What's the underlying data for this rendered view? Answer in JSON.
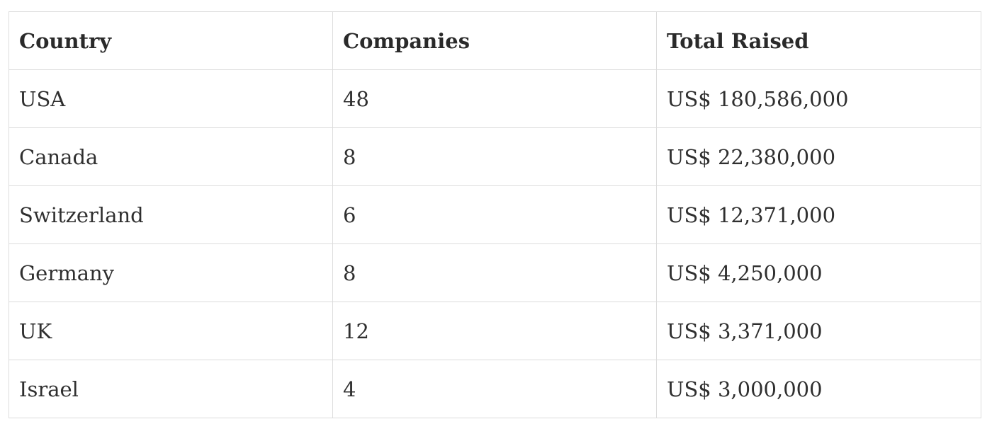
{
  "table": {
    "headers": [
      "Country",
      "Companies",
      "Total Raised"
    ],
    "rows": [
      [
        "USA",
        "48",
        "US$ 180,586,000"
      ],
      [
        "Canada",
        "8",
        "US$ 22,380,000"
      ],
      [
        "Switzerland",
        "6",
        "US$ 12,371,000"
      ],
      [
        "Germany",
        "8",
        "US$ 4,250,000"
      ],
      [
        "UK",
        "12",
        "US$ 3,371,000"
      ],
      [
        "Israel",
        "4",
        "US$ 3,000,000"
      ]
    ]
  }
}
